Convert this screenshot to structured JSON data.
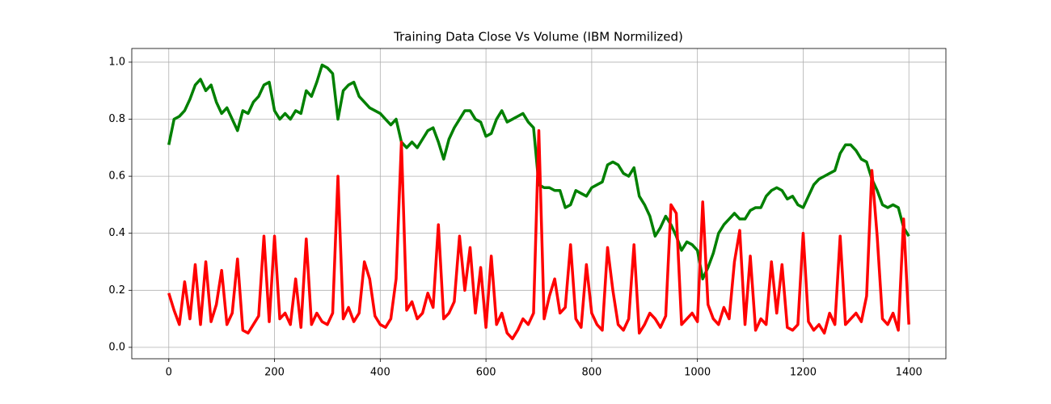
{
  "chart_data": {
    "type": "line",
    "title": "Training Data Close Vs Volume (IBM Normilized)",
    "x": [
      0,
      10,
      20,
      30,
      40,
      50,
      60,
      70,
      80,
      90,
      100,
      110,
      120,
      130,
      140,
      150,
      160,
      170,
      180,
      190,
      200,
      210,
      220,
      230,
      240,
      250,
      260,
      270,
      280,
      290,
      300,
      310,
      320,
      330,
      340,
      350,
      360,
      370,
      380,
      390,
      400,
      410,
      420,
      430,
      440,
      450,
      460,
      470,
      480,
      490,
      500,
      510,
      520,
      530,
      540,
      550,
      560,
      570,
      580,
      590,
      600,
      610,
      620,
      630,
      640,
      650,
      660,
      670,
      680,
      690,
      700,
      710,
      720,
      730,
      740,
      750,
      760,
      770,
      780,
      790,
      800,
      810,
      820,
      830,
      840,
      850,
      860,
      870,
      880,
      890,
      900,
      910,
      920,
      930,
      940,
      950,
      960,
      970,
      980,
      990,
      1000,
      1010,
      1020,
      1030,
      1040,
      1050,
      1060,
      1070,
      1080,
      1090,
      1100,
      1110,
      1120,
      1130,
      1140,
      1150,
      1160,
      1170,
      1180,
      1190,
      1200,
      1210,
      1220,
      1230,
      1240,
      1250,
      1260,
      1270,
      1280,
      1290,
      1300,
      1310,
      1320,
      1330,
      1340,
      1350,
      1360,
      1370,
      1380,
      1390,
      1400
    ],
    "series": [
      {
        "color": "#008000",
        "values": [
          0.71,
          0.8,
          0.81,
          0.83,
          0.87,
          0.92,
          0.94,
          0.9,
          0.92,
          0.86,
          0.82,
          0.84,
          0.8,
          0.76,
          0.83,
          0.82,
          0.86,
          0.88,
          0.92,
          0.93,
          0.83,
          0.8,
          0.82,
          0.8,
          0.83,
          0.82,
          0.9,
          0.88,
          0.93,
          0.99,
          0.98,
          0.96,
          0.8,
          0.9,
          0.92,
          0.93,
          0.88,
          0.86,
          0.84,
          0.83,
          0.82,
          0.8,
          0.78,
          0.8,
          0.72,
          0.7,
          0.72,
          0.7,
          0.73,
          0.76,
          0.77,
          0.72,
          0.66,
          0.73,
          0.77,
          0.8,
          0.83,
          0.83,
          0.8,
          0.79,
          0.74,
          0.75,
          0.8,
          0.83,
          0.79,
          0.8,
          0.81,
          0.82,
          0.79,
          0.77,
          0.57,
          0.56,
          0.56,
          0.55,
          0.55,
          0.49,
          0.5,
          0.55,
          0.54,
          0.53,
          0.56,
          0.57,
          0.58,
          0.64,
          0.65,
          0.64,
          0.61,
          0.6,
          0.63,
          0.53,
          0.5,
          0.46,
          0.39,
          0.42,
          0.46,
          0.43,
          0.39,
          0.34,
          0.37,
          0.36,
          0.34,
          0.24,
          0.28,
          0.33,
          0.4,
          0.43,
          0.45,
          0.47,
          0.45,
          0.45,
          0.48,
          0.49,
          0.49,
          0.53,
          0.55,
          0.56,
          0.55,
          0.52,
          0.53,
          0.5,
          0.49,
          0.53,
          0.57,
          0.59,
          0.6,
          0.61,
          0.62,
          0.68,
          0.71,
          0.71,
          0.69,
          0.66,
          0.65,
          0.59,
          0.55,
          0.5,
          0.49,
          0.5,
          0.49,
          0.42,
          0.39
        ]
      },
      {
        "color": "#ff0000",
        "values": [
          0.19,
          0.13,
          0.08,
          0.23,
          0.1,
          0.29,
          0.08,
          0.3,
          0.09,
          0.15,
          0.27,
          0.08,
          0.12,
          0.31,
          0.06,
          0.05,
          0.08,
          0.11,
          0.39,
          0.09,
          0.39,
          0.1,
          0.12,
          0.08,
          0.24,
          0.07,
          0.38,
          0.08,
          0.12,
          0.09,
          0.08,
          0.12,
          0.6,
          0.1,
          0.14,
          0.09,
          0.12,
          0.3,
          0.24,
          0.11,
          0.08,
          0.07,
          0.1,
          0.24,
          0.72,
          0.13,
          0.16,
          0.1,
          0.12,
          0.19,
          0.14,
          0.43,
          0.1,
          0.12,
          0.16,
          0.39,
          0.2,
          0.35,
          0.12,
          0.28,
          0.07,
          0.32,
          0.08,
          0.12,
          0.05,
          0.03,
          0.06,
          0.1,
          0.08,
          0.12,
          0.76,
          0.1,
          0.18,
          0.24,
          0.12,
          0.14,
          0.36,
          0.1,
          0.07,
          0.29,
          0.12,
          0.08,
          0.06,
          0.35,
          0.2,
          0.08,
          0.06,
          0.1,
          0.36,
          0.05,
          0.08,
          0.12,
          0.1,
          0.07,
          0.11,
          0.5,
          0.47,
          0.08,
          0.1,
          0.12,
          0.09,
          0.51,
          0.15,
          0.1,
          0.08,
          0.14,
          0.1,
          0.3,
          0.41,
          0.08,
          0.32,
          0.06,
          0.1,
          0.08,
          0.3,
          0.12,
          0.29,
          0.07,
          0.06,
          0.08,
          0.4,
          0.09,
          0.06,
          0.08,
          0.05,
          0.12,
          0.08,
          0.39,
          0.08,
          0.1,
          0.12,
          0.09,
          0.18,
          0.62,
          0.39,
          0.1,
          0.08,
          0.12,
          0.06,
          0.45,
          0.08
        ]
      }
    ],
    "xlim": [
      -70,
      1470
    ],
    "xticks": [
      0,
      200,
      400,
      600,
      800,
      1000,
      1200,
      1400
    ],
    "ylim": [
      -0.04,
      1.048
    ],
    "yticks": [
      0.0,
      0.2,
      0.4,
      0.6,
      0.8,
      1.0
    ],
    "grid": true
  }
}
